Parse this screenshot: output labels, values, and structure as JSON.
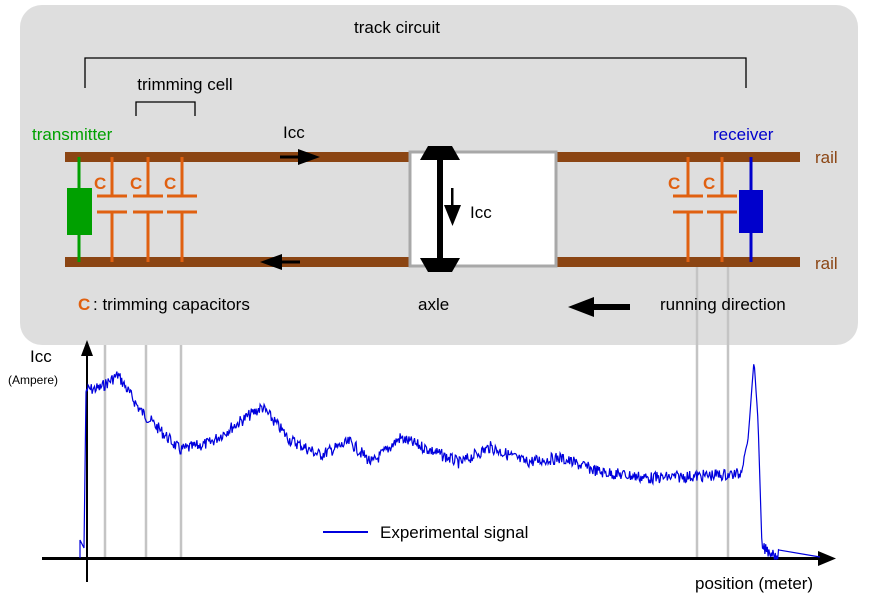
{
  "diagram": {
    "track_circuit": "track circuit",
    "trimming_cell": "trimming cell",
    "transmitter": "transmitter",
    "receiver": "receiver",
    "rails": [
      "rail",
      "rail"
    ],
    "icc_labels": [
      "Icc",
      "Icc"
    ],
    "capacitors": [
      "C",
      "C",
      "C",
      "C",
      "C"
    ],
    "legend": {
      "symbol": "C",
      "text": ": trimming capacitors"
    },
    "axle": "axle",
    "running_direction": "running direction"
  },
  "plot": {
    "y_label": "Icc",
    "y_unit": "(Ampere)",
    "legend": "Experimental signal",
    "x_label": "position (meter)"
  }
}
